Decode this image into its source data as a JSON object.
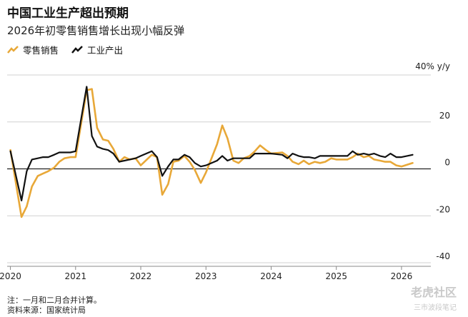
{
  "title": "中国工业生产超出预期",
  "subtitle": "2026年初零售销售增长出现小幅反弹",
  "legend": [
    {
      "label": "零售销售",
      "color": "#E8A838"
    },
    {
      "label": "工业产出",
      "color": "#111111"
    }
  ],
  "notes": [
    "注：一月和二月合并计算。",
    "资料来源：国家统计局"
  ],
  "watermark": {
    "main": "老虎社区",
    "sub": "三市波段笔记"
  },
  "chart_data": {
    "type": "line",
    "unit_label": "40% y/y",
    "yticks": [
      20,
      0,
      -20,
      -40
    ],
    "xticks": [
      "2020",
      "2021",
      "2022",
      "2023",
      "2024",
      "2025",
      "2026"
    ],
    "ylim": [
      -40,
      40
    ],
    "grid": true,
    "legend_position": "top-left",
    "series": [
      {
        "name": "零售销售",
        "color": "#E8A838",
        "x": [
          2020.0,
          2020.17,
          2020.25,
          2020.33,
          2020.42,
          2020.5,
          2020.58,
          2020.67,
          2020.75,
          2020.83,
          2020.92,
          2021.0,
          2021.17,
          2021.25,
          2021.33,
          2021.42,
          2021.5,
          2021.58,
          2021.67,
          2021.75,
          2021.83,
          2021.92,
          2022.0,
          2022.17,
          2022.25,
          2022.33,
          2022.42,
          2022.5,
          2022.58,
          2022.67,
          2022.75,
          2022.83,
          2022.92,
          2023.0,
          2023.17,
          2023.25,
          2023.33,
          2023.42,
          2023.5,
          2023.58,
          2023.67,
          2023.75,
          2023.83,
          2023.92,
          2024.0,
          2024.17,
          2024.25,
          2024.33,
          2024.42,
          2024.5,
          2024.58,
          2024.67,
          2024.75,
          2024.83,
          2024.92,
          2025.0,
          2025.17,
          2025.25,
          2025.33,
          2025.42,
          2025.5,
          2025.58,
          2025.67,
          2025.75,
          2025.83,
          2025.92,
          2026.0,
          2026.17
        ],
        "y": [
          8,
          -20.5,
          -16,
          -7.5,
          -3,
          -2,
          -1,
          0.5,
          3,
          4.5,
          5,
          5,
          33.5,
          34,
          17.5,
          12.5,
          12,
          8.5,
          3,
          5,
          4,
          4.5,
          1.5,
          6,
          5,
          -11,
          -6.5,
          3,
          3.5,
          5.5,
          3,
          -0.5,
          -6,
          -1.5,
          10.5,
          18.5,
          13,
          3.5,
          2.5,
          4.5,
          5.5,
          7.5,
          10,
          8,
          6.5,
          7,
          5.5,
          3,
          2,
          3.5,
          2,
          3,
          2.5,
          3,
          4.5,
          4,
          4,
          5,
          6.5,
          5,
          5.5,
          4,
          3.5,
          3,
          3,
          1.5,
          1,
          2.5
        ]
      },
      {
        "name": "工业产出",
        "color": "#111111",
        "x": [
          2020.0,
          2020.17,
          2020.25,
          2020.33,
          2020.42,
          2020.5,
          2020.58,
          2020.67,
          2020.75,
          2020.83,
          2020.92,
          2021.0,
          2021.17,
          2021.25,
          2021.33,
          2021.42,
          2021.5,
          2021.58,
          2021.67,
          2021.75,
          2021.83,
          2021.92,
          2022.0,
          2022.17,
          2022.25,
          2022.33,
          2022.42,
          2022.5,
          2022.58,
          2022.67,
          2022.75,
          2022.83,
          2022.92,
          2023.0,
          2023.17,
          2023.25,
          2023.33,
          2023.42,
          2023.5,
          2023.58,
          2023.67,
          2023.75,
          2023.83,
          2023.92,
          2024.0,
          2024.17,
          2024.25,
          2024.33,
          2024.42,
          2024.5,
          2024.58,
          2024.67,
          2024.75,
          2024.83,
          2024.92,
          2025.0,
          2025.17,
          2025.25,
          2025.33,
          2025.42,
          2025.5,
          2025.58,
          2025.67,
          2025.75,
          2025.83,
          2025.92,
          2026.0,
          2026.17
        ],
        "y": [
          7.5,
          -13.5,
          -1,
          4,
          4.5,
          5,
          5,
          6,
          7,
          7,
          7,
          7.5,
          35,
          14,
          9.5,
          8.5,
          8,
          6.5,
          3,
          3.5,
          4,
          4.5,
          5.5,
          7.5,
          5,
          -3,
          1,
          4,
          4,
          6,
          5,
          2.5,
          1,
          1.5,
          3.5,
          5.5,
          3.5,
          4.5,
          4.5,
          4.5,
          4.5,
          6.5,
          6.5,
          6.5,
          6.5,
          6,
          4.5,
          6.5,
          5.5,
          5,
          5,
          4.5,
          5.5,
          5.5,
          5.5,
          5.5,
          5.5,
          7.5,
          6,
          6.5,
          6,
          6.5,
          5.5,
          5,
          6.5,
          5,
          5,
          6
        ]
      }
    ]
  }
}
